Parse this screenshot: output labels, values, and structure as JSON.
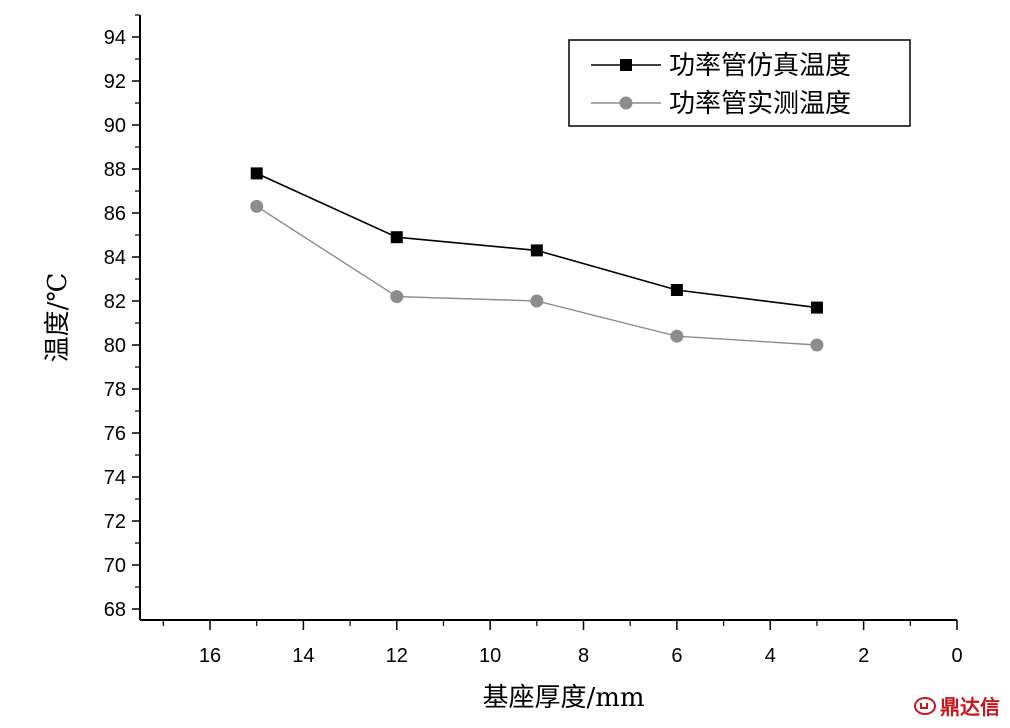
{
  "chart_data": {
    "type": "line",
    "xlabel": "基座厚度/mm",
    "ylabel": "温度/℃",
    "xlim": [
      0,
      17.5
    ],
    "x_reversed": true,
    "ylim": [
      67.5,
      95
    ],
    "x_ticks": [
      "16",
      "14",
      "12",
      "10",
      "8",
      "6",
      "4",
      "2",
      "0"
    ],
    "y_ticks": [
      "68",
      "70",
      "72",
      "74",
      "76",
      "78",
      "80",
      "82",
      "84",
      "86",
      "88",
      "90",
      "92",
      "94"
    ],
    "x": [
      15,
      12,
      9,
      6,
      3
    ],
    "series": [
      {
        "name": "功率管仿真温度",
        "values": [
          87.8,
          84.9,
          84.3,
          82.5,
          81.7
        ],
        "marker": "square",
        "color": "#000000"
      },
      {
        "name": "功率管实测温度",
        "values": [
          86.3,
          82.2,
          82.0,
          80.4,
          80.0
        ],
        "marker": "circle",
        "color": "#8c8c8c"
      }
    ],
    "legend_position": "top-right",
    "grid": false
  },
  "watermark": {
    "text": "鼎达信",
    "color": "#c8161d"
  }
}
